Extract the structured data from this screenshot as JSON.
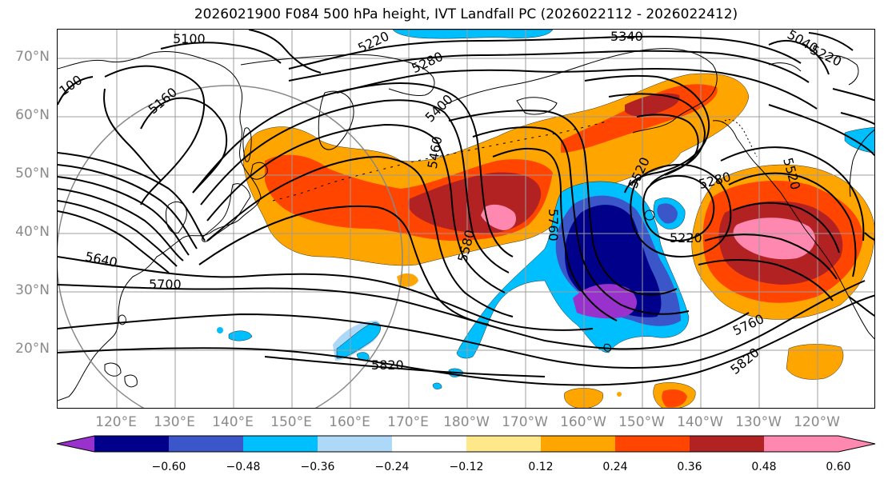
{
  "title": "2026021900 F084 500 hPa height, IVT Landfall PC (2026022112 - 2026022412)",
  "latitude_labels": [
    "70°N",
    "60°N",
    "50°N",
    "40°N",
    "30°N",
    "20°N"
  ],
  "longitude_labels": [
    "120°E",
    "130°E",
    "140°E",
    "150°E",
    "160°E",
    "170°E",
    "180°W",
    "170°W",
    "160°W",
    "150°W",
    "140°W",
    "130°W",
    "120°W"
  ],
  "contour_labels": {
    "c5100": "5100",
    "c5220": "5220",
    "c5340": "5340",
    "c5280a": "5280",
    "c5220b": "5220",
    "c100": "100",
    "c5160": "5160",
    "c5400": "5400",
    "c5460": "5460",
    "c5520": "5520",
    "c5280b": "5280",
    "c5640": "5640",
    "c5700": "5700",
    "c5580": "5580",
    "c5760a": "5760",
    "c5220c": "5220",
    "c5760b": "5760",
    "c5820a": "5820",
    "c5820b": "5820",
    "c5040": "5040"
  },
  "colorbar": {
    "ticks": [
      "−0.60",
      "−0.48",
      "−0.36",
      "−0.24",
      "−0.12",
      "0.12",
      "0.24",
      "0.36",
      "0.48",
      "0.60"
    ],
    "colors": [
      "#9932cc",
      "#00008b",
      "#3a56c8",
      "#00bfff",
      "#add8f8",
      "#ffffff",
      "#ffe88a",
      "#ffa500",
      "#ff4500",
      "#b22222",
      "#ff88b0",
      "#ff88b0"
    ]
  },
  "fill_colors": {
    "orange": "#ffa500",
    "red_orange": "#ff4500",
    "dark_red": "#b22222",
    "pink": "#ff88b0",
    "light_yellow": "#ffe88a",
    "purple": "#9932cc",
    "navy": "#00008b",
    "royal_blue": "#3a56c8",
    "sky_blue": "#00bfff",
    "light_blue": "#add8f8"
  }
}
